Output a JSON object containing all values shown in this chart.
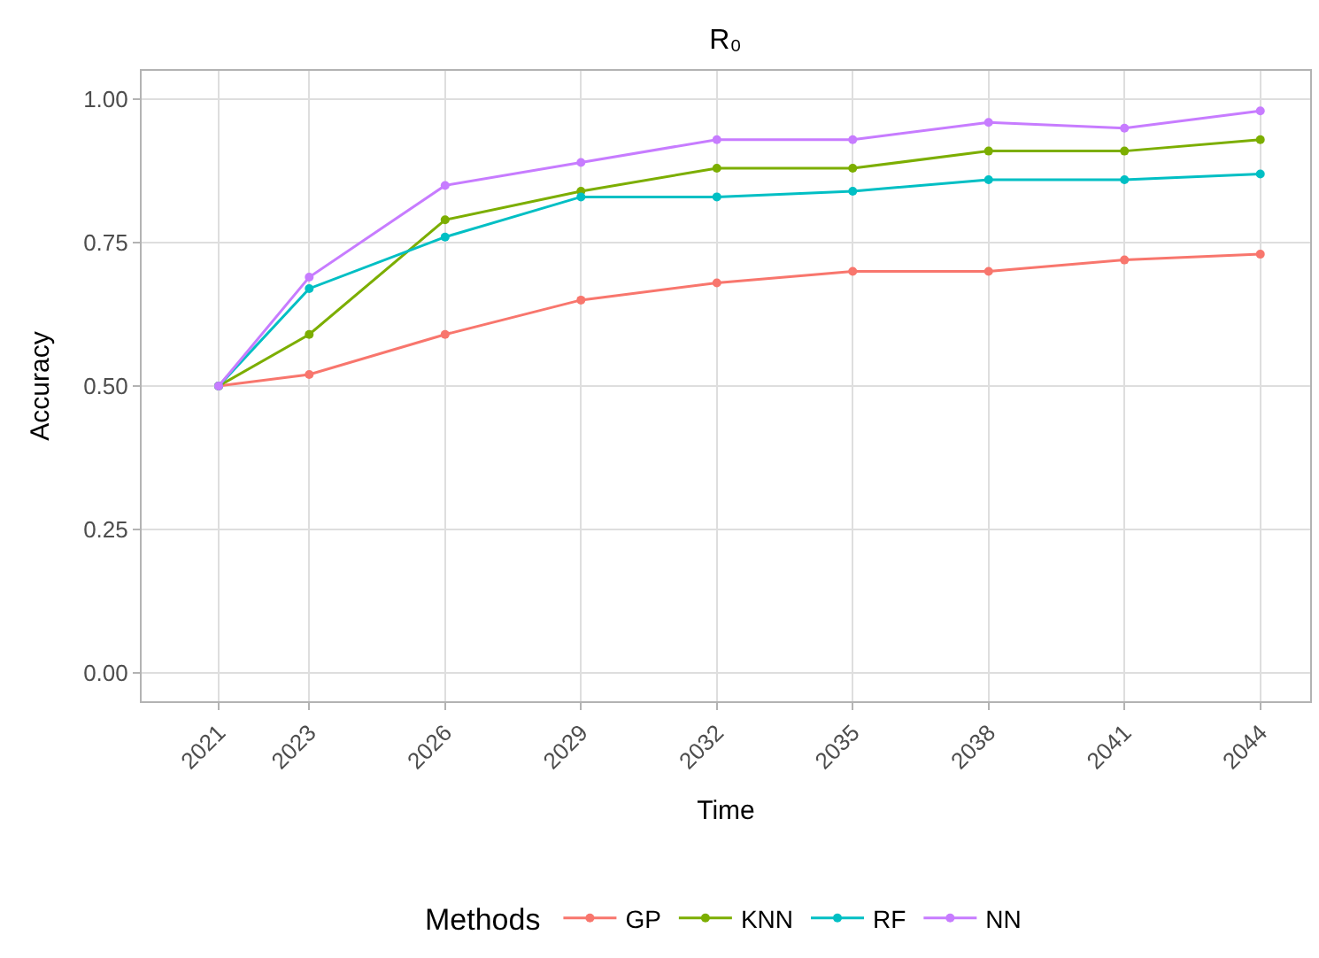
{
  "chart_data": {
    "type": "line",
    "title": "R₀",
    "xlabel": "Time",
    "ylabel": "Accuracy",
    "legend_title": "Methods",
    "x": [
      2021,
      2023,
      2026,
      2029,
      2032,
      2035,
      2038,
      2041,
      2044
    ],
    "series": [
      {
        "name": "GP",
        "color": "#f8766d",
        "values": [
          0.5,
          0.52,
          0.59,
          0.65,
          0.68,
          0.7,
          0.7,
          0.72,
          0.73
        ]
      },
      {
        "name": "KNN",
        "color": "#7cae00",
        "values": [
          0.5,
          0.59,
          0.79,
          0.84,
          0.88,
          0.88,
          0.91,
          0.91,
          0.93
        ]
      },
      {
        "name": "RF",
        "color": "#00bfc4",
        "values": [
          0.5,
          0.67,
          0.76,
          0.83,
          0.83,
          0.84,
          0.86,
          0.86,
          0.87
        ]
      },
      {
        "name": "NN",
        "color": "#c77cff",
        "values": [
          0.5,
          0.69,
          0.85,
          0.89,
          0.93,
          0.93,
          0.96,
          0.95,
          0.98
        ]
      }
    ],
    "xlim": [
      2019.3,
      2045.1
    ],
    "xticks": [
      2021,
      2023,
      2026,
      2029,
      2032,
      2035,
      2038,
      2041,
      2044
    ],
    "ylim": [
      -0.05,
      1.05
    ],
    "yticks": [
      {
        "value": 0,
        "label": "0.00"
      },
      {
        "value": 0.25,
        "label": "0.25"
      },
      {
        "value": 0.5,
        "label": "0.50"
      },
      {
        "value": 0.75,
        "label": "0.75"
      },
      {
        "value": 1,
        "label": "1.00"
      }
    ],
    "grid": true,
    "legend": "bottom",
    "marker": "circle",
    "line_style": "solid"
  }
}
